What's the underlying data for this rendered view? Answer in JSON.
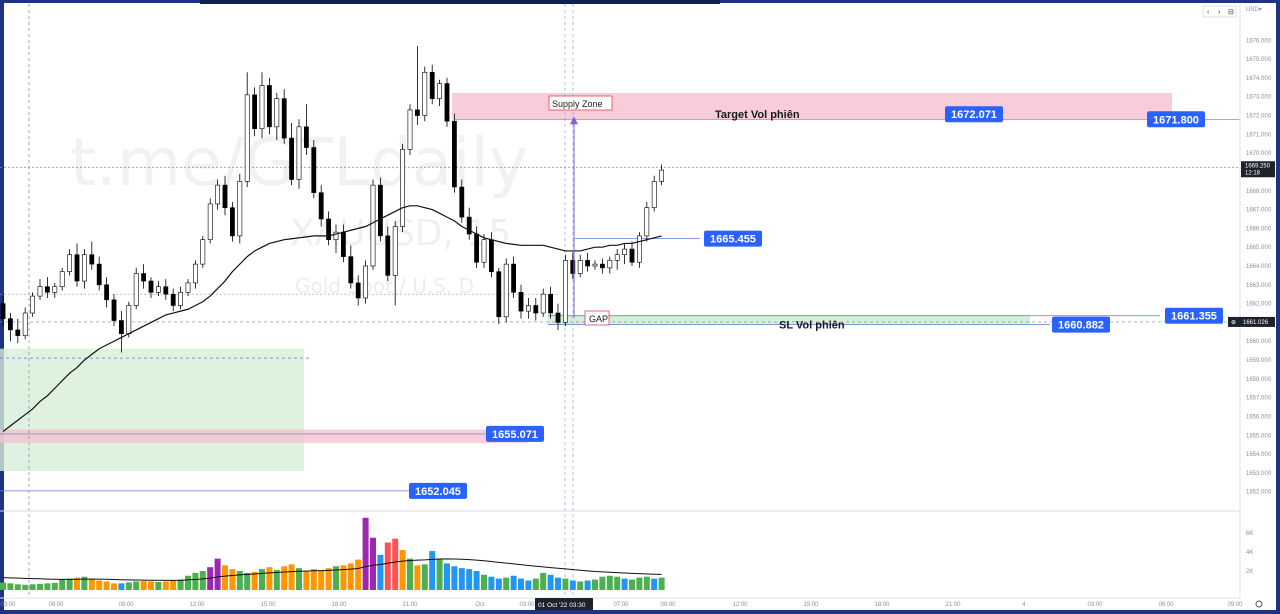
{
  "window": {
    "top_controls": [
      "‹",
      "›",
      "⊟"
    ],
    "price_header": "USD▾"
  },
  "watermark": {
    "channel": "t.me/GTLdaily",
    "symbol": "XAUUSD, 15",
    "description": "Gold Spot / U.S. D"
  },
  "colors": {
    "up_body": "#ffffff",
    "down_body": "#000000",
    "wick": "#000000",
    "label_bg": "#2962ff",
    "supply_zone": "#f8cdd9",
    "demand_zone": "#d7eed7",
    "vol_green": "#4caf50",
    "vol_orange": "#ff9800",
    "vol_blue": "#2196f3",
    "vol_purple": "#9c27b0",
    "vol_red": "#ff5252"
  },
  "annotations": {
    "supply_zone": "Supply Zone",
    "target": "Target Vol phiên",
    "sl": "SL Vol phiên",
    "gap": "GAP"
  },
  "price_labels": {
    "target_high": "1672.071",
    "target_right": "1671.800",
    "mid": "1665.455",
    "sl_low": "1660.882",
    "sl_right": "1661.355",
    "zone_low": "1655.071",
    "bottom": "1652.045"
  },
  "axis_badges": {
    "current_price": "1669.250",
    "countdown": "12:18",
    "crosshair_price": "1661.026",
    "crosshair_time": "01 Oct '22  03:30"
  },
  "chart_data": {
    "type": "candlestick",
    "symbol": "XAUUSD, 15",
    "ylim": [
      1651,
      1677
    ],
    "y_ticks": [
      "1676.000",
      "1675.000",
      "1674.000",
      "1673.000",
      "1672.000",
      "1671.000",
      "1670.000",
      "1669.000",
      "1668.000",
      "1667.000",
      "1666.000",
      "1665.000",
      "1664.000",
      "1663.000",
      "1662.000",
      "1661.000",
      "1660.000",
      "1659.000",
      "1658.000",
      "1657.000",
      "1656.000",
      "1655.000",
      "1654.000",
      "1653.000",
      "1652.000"
    ],
    "x_ticks": [
      "03:00",
      "06:00",
      "09:00",
      "12:00",
      "15:00",
      "18:00",
      "21:00",
      "Oct",
      "03:00",
      "07:00",
      "09:00",
      "12:00",
      "15:00",
      "18:00",
      "21:00",
      "4",
      "03:00",
      "06:00",
      "09:00"
    ],
    "volume_ticks": [
      "6K",
      "4K",
      "2K"
    ],
    "ohlc": [
      [
        1662.0,
        1662.4,
        1660.8,
        1661.2
      ],
      [
        1661.2,
        1661.5,
        1660.0,
        1660.6
      ],
      [
        1660.6,
        1661.2,
        1659.9,
        1660.3
      ],
      [
        1660.3,
        1661.8,
        1660.1,
        1661.5
      ],
      [
        1661.5,
        1662.6,
        1661.3,
        1662.4
      ],
      [
        1662.4,
        1663.3,
        1662.2,
        1662.9
      ],
      [
        1662.9,
        1663.4,
        1662.3,
        1662.6
      ],
      [
        1662.6,
        1663.1,
        1662.3,
        1662.9
      ],
      [
        1662.9,
        1663.9,
        1662.7,
        1663.7
      ],
      [
        1663.7,
        1664.9,
        1663.5,
        1664.6
      ],
      [
        1664.6,
        1665.2,
        1662.9,
        1663.2
      ],
      [
        1663.2,
        1664.9,
        1662.8,
        1664.6
      ],
      [
        1664.6,
        1665.3,
        1663.8,
        1664.1
      ],
      [
        1664.1,
        1664.5,
        1662.7,
        1663.0
      ],
      [
        1663.0,
        1663.4,
        1661.8,
        1662.2
      ],
      [
        1662.2,
        1662.5,
        1660.8,
        1661.1
      ],
      [
        1661.1,
        1661.6,
        1659.4,
        1660.4
      ],
      [
        1660.4,
        1662.1,
        1660.2,
        1661.9
      ],
      [
        1661.9,
        1663.9,
        1661.7,
        1663.6
      ],
      [
        1663.6,
        1664.1,
        1662.8,
        1663.2
      ],
      [
        1663.2,
        1663.4,
        1662.3,
        1662.6
      ],
      [
        1662.6,
        1663.2,
        1662.4,
        1662.9
      ],
      [
        1662.9,
        1663.3,
        1662.2,
        1662.5
      ],
      [
        1662.5,
        1662.8,
        1661.6,
        1661.9
      ],
      [
        1661.9,
        1662.9,
        1661.7,
        1662.6
      ],
      [
        1662.6,
        1663.3,
        1662.4,
        1663.1
      ],
      [
        1663.1,
        1664.3,
        1662.8,
        1664.1
      ],
      [
        1664.1,
        1665.6,
        1663.9,
        1665.4
      ],
      [
        1665.4,
        1667.6,
        1665.2,
        1667.3
      ],
      [
        1667.3,
        1668.6,
        1667.0,
        1668.3
      ],
      [
        1668.3,
        1668.8,
        1666.7,
        1667.1
      ],
      [
        1667.1,
        1667.4,
        1665.3,
        1665.6
      ],
      [
        1665.6,
        1668.9,
        1665.2,
        1668.5
      ],
      [
        1668.5,
        1674.3,
        1668.2,
        1673.1
      ],
      [
        1673.1,
        1673.5,
        1670.9,
        1671.3
      ],
      [
        1671.3,
        1674.3,
        1670.8,
        1673.6
      ],
      [
        1673.6,
        1674.0,
        1671.0,
        1671.4
      ],
      [
        1671.4,
        1673.2,
        1670.7,
        1672.9
      ],
      [
        1672.9,
        1673.4,
        1670.5,
        1670.8
      ],
      [
        1670.8,
        1671.6,
        1668.3,
        1668.6
      ],
      [
        1668.6,
        1671.8,
        1668.1,
        1671.4
      ],
      [
        1671.4,
        1672.6,
        1669.9,
        1670.3
      ],
      [
        1670.3,
        1670.7,
        1667.6,
        1667.9
      ],
      [
        1667.9,
        1668.3,
        1666.1,
        1666.5
      ],
      [
        1666.5,
        1666.9,
        1665.1,
        1665.4
      ],
      [
        1665.4,
        1666.2,
        1664.7,
        1665.8
      ],
      [
        1665.8,
        1666.2,
        1664.2,
        1664.5
      ],
      [
        1664.5,
        1665.1,
        1662.8,
        1663.1
      ],
      [
        1663.1,
        1663.5,
        1661.9,
        1662.3
      ],
      [
        1662.3,
        1664.3,
        1662.0,
        1664.0
      ],
      [
        1664.0,
        1668.6,
        1663.8,
        1668.3
      ],
      [
        1668.3,
        1668.7,
        1665.3,
        1665.6
      ],
      [
        1665.6,
        1666.1,
        1663.2,
        1663.5
      ],
      [
        1663.5,
        1666.4,
        1661.9,
        1666.1
      ],
      [
        1666.1,
        1670.5,
        1665.8,
        1670.2
      ],
      [
        1670.2,
        1672.6,
        1669.9,
        1672.3
      ],
      [
        1672.3,
        1675.7,
        1671.5,
        1672.0
      ],
      [
        1672.0,
        1674.6,
        1671.7,
        1674.3
      ],
      [
        1674.3,
        1674.7,
        1672.6,
        1672.9
      ],
      [
        1672.9,
        1673.9,
        1672.5,
        1673.7
      ],
      [
        1673.7,
        1674.0,
        1671.4,
        1671.7
      ],
      [
        1671.7,
        1672.1,
        1667.9,
        1668.2
      ],
      [
        1668.2,
        1668.6,
        1666.3,
        1666.6
      ],
      [
        1666.6,
        1667.1,
        1665.4,
        1665.7
      ],
      [
        1665.7,
        1666.1,
        1663.9,
        1664.2
      ],
      [
        1664.2,
        1665.7,
        1663.9,
        1665.4
      ],
      [
        1665.4,
        1665.8,
        1663.4,
        1663.7
      ],
      [
        1663.7,
        1663.9,
        1660.9,
        1661.3
      ],
      [
        1661.3,
        1664.4,
        1661.0,
        1664.1
      ],
      [
        1664.1,
        1664.5,
        1662.3,
        1662.6
      ],
      [
        1662.6,
        1663.0,
        1661.2,
        1661.6
      ],
      [
        1661.6,
        1662.3,
        1661.2,
        1661.9
      ],
      [
        1661.9,
        1662.3,
        1661.1,
        1661.5
      ],
      [
        1661.5,
        1662.8,
        1661.3,
        1662.5
      ],
      [
        1662.5,
        1662.9,
        1661.2,
        1661.5
      ],
      [
        1661.5,
        1662.0,
        1660.6,
        1661.0
      ],
      [
        1661.0,
        1664.6,
        1660.8,
        1664.3
      ],
      [
        1664.3,
        1664.7,
        1663.3,
        1663.6
      ],
      [
        1663.6,
        1664.6,
        1663.4,
        1664.3
      ],
      [
        1664.3,
        1664.7,
        1663.7,
        1664.0
      ],
      [
        1664.0,
        1664.3,
        1663.8,
        1664.1
      ],
      [
        1664.1,
        1664.4,
        1663.6,
        1663.9
      ],
      [
        1663.9,
        1664.5,
        1663.6,
        1664.3
      ],
      [
        1664.3,
        1664.9,
        1663.8,
        1664.6
      ],
      [
        1664.6,
        1665.2,
        1664.1,
        1664.9
      ],
      [
        1664.9,
        1665.3,
        1664.0,
        1664.2
      ],
      [
        1664.2,
        1665.8,
        1663.9,
        1665.6
      ],
      [
        1665.6,
        1667.4,
        1665.3,
        1667.1
      ],
      [
        1667.1,
        1668.8,
        1666.9,
        1668.5
      ],
      [
        1668.5,
        1669.4,
        1668.3,
        1669.1
      ]
    ],
    "ma_values": [
      1655.2,
      1655.5,
      1655.8,
      1656.1,
      1656.4,
      1656.8,
      1657.1,
      1657.5,
      1657.9,
      1658.3,
      1658.6,
      1659.0,
      1659.3,
      1659.6,
      1659.8,
      1660.0,
      1660.2,
      1660.4,
      1660.6,
      1660.8,
      1661.0,
      1661.2,
      1661.4,
      1661.5,
      1661.6,
      1661.7,
      1661.9,
      1662.1,
      1662.4,
      1662.8,
      1663.2,
      1663.7,
      1664.1,
      1664.5,
      1664.8,
      1665.0,
      1665.2,
      1665.3,
      1665.4,
      1665.45,
      1665.5,
      1665.55,
      1665.6,
      1665.6,
      1665.6,
      1665.7,
      1665.8,
      1665.9,
      1666.0,
      1666.1,
      1666.3,
      1666.5,
      1666.7,
      1666.9,
      1667.1,
      1667.2,
      1667.2,
      1667.1,
      1667.0,
      1666.8,
      1666.6,
      1666.4,
      1666.1,
      1665.9,
      1665.7,
      1665.5,
      1665.4,
      1665.3,
      1665.2,
      1665.15,
      1665.1,
      1665.1,
      1665.1,
      1665.1,
      1665.0,
      1664.9,
      1664.8,
      1664.8,
      1664.8,
      1664.9,
      1665.0,
      1665.0,
      1665.1,
      1665.1,
      1665.2,
      1665.2,
      1665.3,
      1665.4,
      1665.5,
      1665.6
    ],
    "volume": [
      800,
      700,
      600,
      550,
      600,
      650,
      700,
      750,
      1100,
      1200,
      1300,
      1400,
      1200,
      1000,
      900,
      700,
      700,
      800,
      900,
      950,
      900,
      850,
      900,
      1000,
      1100,
      1500,
      1800,
      2000,
      2400,
      3300,
      2600,
      2200,
      2000,
      1800,
      1900,
      2200,
      2400,
      2100,
      2500,
      2700,
      2300,
      2000,
      2200,
      2000,
      2300,
      2500,
      2600,
      2800,
      3200,
      7600,
      5500,
      3700,
      5000,
      5400,
      4200,
      3300,
      2600,
      2700,
      4100,
      3300,
      2800,
      2500,
      2300,
      2200,
      2000,
      1600,
      1400,
      1200,
      1300,
      1500,
      1200,
      1000,
      1200,
      1800,
      1600,
      1300,
      1200,
      1000,
      900,
      1000,
      1100,
      1400,
      1500,
      1400,
      1200,
      1100,
      1300,
      1400,
      1200,
      1300
    ],
    "volume_colors": [
      "g",
      "g",
      "g",
      "g",
      "g",
      "g",
      "g",
      "g",
      "g",
      "g",
      "o",
      "g",
      "o",
      "o",
      "o",
      "o",
      "b",
      "g",
      "g",
      "o",
      "o",
      "g",
      "o",
      "o",
      "g",
      "g",
      "g",
      "g",
      "p",
      "p",
      "o",
      "o",
      "g",
      "g",
      "o",
      "g",
      "o",
      "g",
      "o",
      "o",
      "g",
      "o",
      "o",
      "o",
      "o",
      "g",
      "o",
      "o",
      "o",
      "p",
      "p",
      "b",
      "r",
      "r",
      "o",
      "g",
      "o",
      "g",
      "b",
      "g",
      "b",
      "b",
      "b",
      "b",
      "b",
      "g",
      "b",
      "b",
      "g",
      "b",
      "b",
      "b",
      "g",
      "g",
      "b",
      "b",
      "g",
      "b",
      "g",
      "b",
      "g",
      "g",
      "g",
      "g",
      "b",
      "g",
      "g",
      "g",
      "b",
      "g"
    ],
    "volume_ma": [
      1300,
      1280,
      1250,
      1220,
      1200,
      1180,
      1150,
      1130,
      1120,
      1120,
      1130,
      1150,
      1150,
      1140,
      1130,
      1110,
      1080,
      1060,
      1050,
      1040,
      1030,
      1020,
      1010,
      1010,
      1020,
      1060,
      1110,
      1170,
      1250,
      1380,
      1460,
      1530,
      1590,
      1640,
      1690,
      1750,
      1800,
      1840,
      1890,
      1940,
      1970,
      1990,
      2020,
      2040,
      2070,
      2110,
      2150,
      2200,
      2260,
      2460,
      2600,
      2680,
      2810,
      2950,
      3040,
      3100,
      3140,
      3170,
      3220,
      3260,
      3270,
      3260,
      3240,
      3200,
      3150,
      3080,
      3000,
      2910,
      2830,
      2750,
      2670,
      2580,
      2500,
      2430,
      2360,
      2290,
      2220,
      2150,
      2080,
      2010,
      1950,
      1910,
      1870,
      1830,
      1790,
      1750,
      1720,
      1690,
      1660,
      1640
    ],
    "levels": {
      "target_high": 1672.071,
      "target_right": 1671.8,
      "mid": 1665.455,
      "sl_low": 1660.882,
      "sl_right": 1661.355,
      "zone_low": 1655.071,
      "bottom": 1652.045,
      "current": 1669.25,
      "crosshair": 1661.026
    },
    "zones": {
      "supply": [
        1671.8,
        1673.2
      ],
      "demand": [
        1653.1,
        1659.6
      ],
      "sl_band": [
        1660.88,
        1661.4
      ]
    }
  }
}
